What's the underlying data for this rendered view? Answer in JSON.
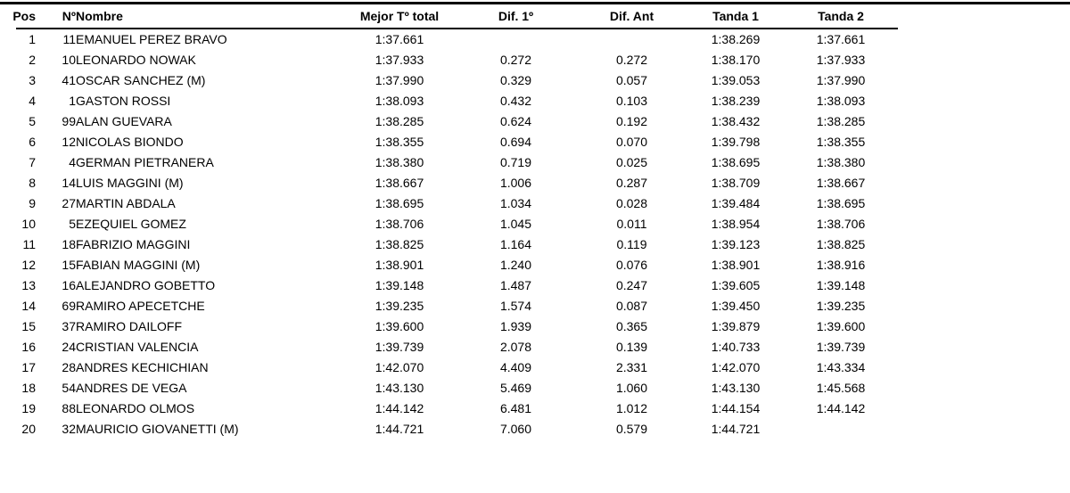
{
  "table": {
    "columns": {
      "pos": "Pos",
      "num": "Nº",
      "nombre": "Nombre",
      "mejor": "Mejor Tº total",
      "dif1": "Dif. 1º",
      "difant": "Dif. Ant",
      "tanda1": "Tanda 1",
      "tanda2": "Tanda 2"
    },
    "rows": [
      {
        "pos": "1",
        "num": "11",
        "nombre": "EMANUEL PEREZ BRAVO",
        "mejor": "1:37.661",
        "dif1": "",
        "difant": "",
        "tanda1": "1:38.269",
        "tanda2": "1:37.661"
      },
      {
        "pos": "2",
        "num": "10",
        "nombre": "LEONARDO NOWAK",
        "mejor": "1:37.933",
        "dif1": "0.272",
        "difant": "0.272",
        "tanda1": "1:38.170",
        "tanda2": "1:37.933"
      },
      {
        "pos": "3",
        "num": "41",
        "nombre": "OSCAR SANCHEZ (M)",
        "mejor": "1:37.990",
        "dif1": "0.329",
        "difant": "0.057",
        "tanda1": "1:39.053",
        "tanda2": "1:37.990"
      },
      {
        "pos": "4",
        "num": "1",
        "nombre": "GASTON ROSSI",
        "mejor": "1:38.093",
        "dif1": "0.432",
        "difant": "0.103",
        "tanda1": "1:38.239",
        "tanda2": "1:38.093"
      },
      {
        "pos": "5",
        "num": "99",
        "nombre": "ALAN GUEVARA",
        "mejor": "1:38.285",
        "dif1": "0.624",
        "difant": "0.192",
        "tanda1": "1:38.432",
        "tanda2": "1:38.285"
      },
      {
        "pos": "6",
        "num": "12",
        "nombre": "NICOLAS BIONDO",
        "mejor": "1:38.355",
        "dif1": "0.694",
        "difant": "0.070",
        "tanda1": "1:39.798",
        "tanda2": "1:38.355"
      },
      {
        "pos": "7",
        "num": "4",
        "nombre": "GERMAN PIETRANERA",
        "mejor": "1:38.380",
        "dif1": "0.719",
        "difant": "0.025",
        "tanda1": "1:38.695",
        "tanda2": "1:38.380"
      },
      {
        "pos": "8",
        "num": "14",
        "nombre": "LUIS MAGGINI (M)",
        "mejor": "1:38.667",
        "dif1": "1.006",
        "difant": "0.287",
        "tanda1": "1:38.709",
        "tanda2": "1:38.667"
      },
      {
        "pos": "9",
        "num": "27",
        "nombre": "MARTIN ABDALA",
        "mejor": "1:38.695",
        "dif1": "1.034",
        "difant": "0.028",
        "tanda1": "1:39.484",
        "tanda2": "1:38.695"
      },
      {
        "pos": "10",
        "num": "5",
        "nombre": "EZEQUIEL GOMEZ",
        "mejor": "1:38.706",
        "dif1": "1.045",
        "difant": "0.011",
        "tanda1": "1:38.954",
        "tanda2": "1:38.706"
      },
      {
        "pos": "11",
        "num": "18",
        "nombre": "FABRIZIO MAGGINI",
        "mejor": "1:38.825",
        "dif1": "1.164",
        "difant": "0.119",
        "tanda1": "1:39.123",
        "tanda2": "1:38.825"
      },
      {
        "pos": "12",
        "num": "15",
        "nombre": "FABIAN MAGGINI (M)",
        "mejor": "1:38.901",
        "dif1": "1.240",
        "difant": "0.076",
        "tanda1": "1:38.901",
        "tanda2": "1:38.916"
      },
      {
        "pos": "13",
        "num": "16",
        "nombre": "ALEJANDRO GOBETTO",
        "mejor": "1:39.148",
        "dif1": "1.487",
        "difant": "0.247",
        "tanda1": "1:39.605",
        "tanda2": "1:39.148"
      },
      {
        "pos": "14",
        "num": "69",
        "nombre": "RAMIRO APECETCHE",
        "mejor": "1:39.235",
        "dif1": "1.574",
        "difant": "0.087",
        "tanda1": "1:39.450",
        "tanda2": "1:39.235"
      },
      {
        "pos": "15",
        "num": "37",
        "nombre": "RAMIRO DAILOFF",
        "mejor": "1:39.600",
        "dif1": "1.939",
        "difant": "0.365",
        "tanda1": "1:39.879",
        "tanda2": "1:39.600"
      },
      {
        "pos": "16",
        "num": "24",
        "nombre": "CRISTIAN VALENCIA",
        "mejor": "1:39.739",
        "dif1": "2.078",
        "difant": "0.139",
        "tanda1": "1:40.733",
        "tanda2": "1:39.739"
      },
      {
        "pos": "17",
        "num": "28",
        "nombre": "ANDRES KECHICHIAN",
        "mejor": "1:42.070",
        "dif1": "4.409",
        "difant": "2.331",
        "tanda1": "1:42.070",
        "tanda2": "1:43.334"
      },
      {
        "pos": "18",
        "num": "54",
        "nombre": "ANDRES DE VEGA",
        "mejor": "1:43.130",
        "dif1": "5.469",
        "difant": "1.060",
        "tanda1": "1:43.130",
        "tanda2": "1:45.568"
      },
      {
        "pos": "19",
        "num": "88",
        "nombre": "LEONARDO OLMOS",
        "mejor": "1:44.142",
        "dif1": "6.481",
        "difant": "1.012",
        "tanda1": "1:44.154",
        "tanda2": "1:44.142"
      },
      {
        "pos": "20",
        "num": "32",
        "nombre": "MAURICIO GIOVANETTI (M)",
        "mejor": "1:44.721",
        "dif1": "7.060",
        "difant": "0.579",
        "tanda1": "1:44.721",
        "tanda2": ""
      }
    ]
  },
  "colors": {
    "text": "#000000",
    "background": "#ffffff",
    "rule": "#000000"
  }
}
